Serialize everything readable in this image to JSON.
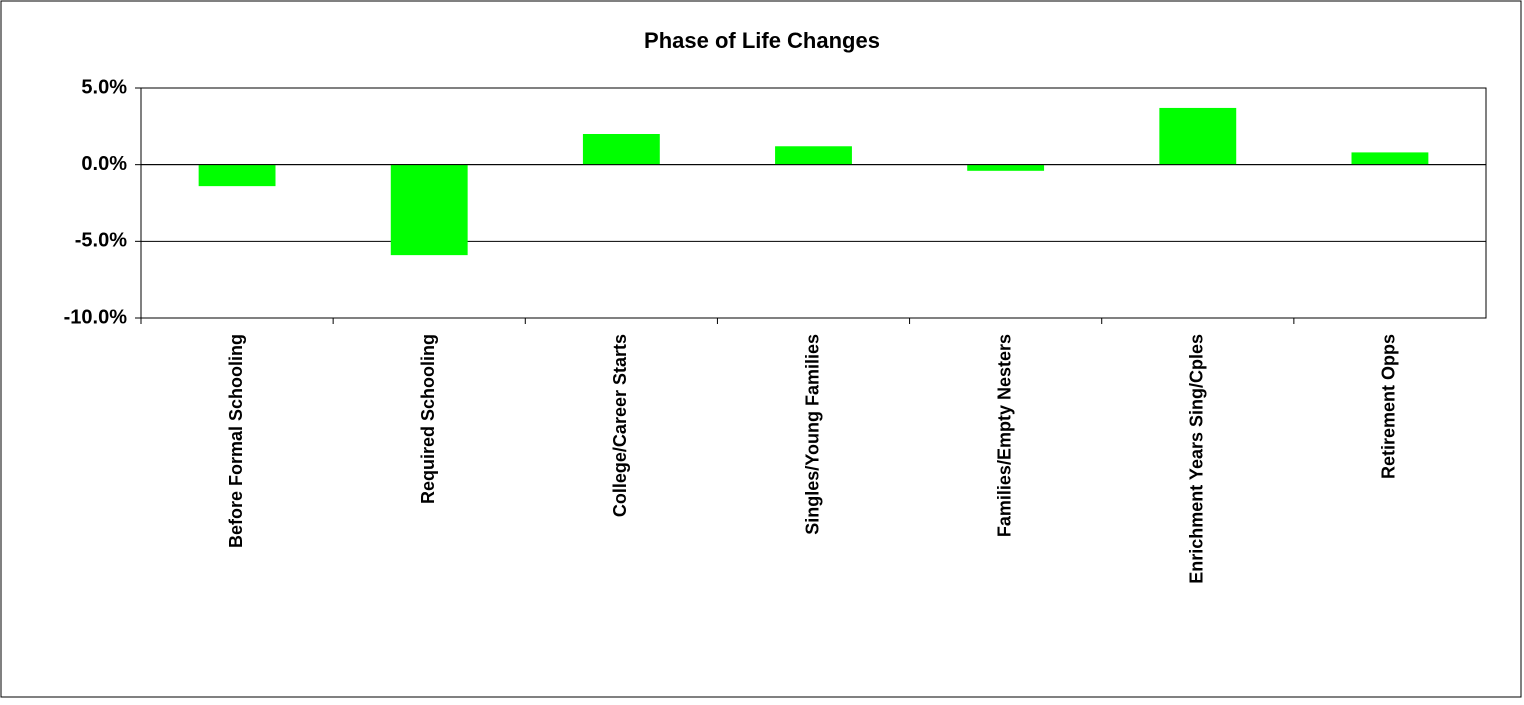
{
  "chart_data": {
    "type": "bar",
    "title": "Phase of Life Changes",
    "categories": [
      "Before Formal Schooling",
      "Required Schooling",
      "College/Career Starts",
      "Singles/Young Families",
      "Families/Empty Nesters",
      "Enrichment Years Sing/Cples",
      "Retirement Opps"
    ],
    "values": [
      -1.4,
      -5.9,
      2.0,
      1.2,
      -0.4,
      3.7,
      0.8
    ],
    "color": "#00ff00",
    "ylim": [
      -10,
      5
    ],
    "yticks": [
      {
        "value": -10,
        "label": "-10.0%"
      },
      {
        "value": -5,
        "label": "-5.0%"
      },
      {
        "value": 0,
        "label": "0.0%"
      },
      {
        "value": 5,
        "label": "5.0%"
      }
    ],
    "grid": true
  }
}
